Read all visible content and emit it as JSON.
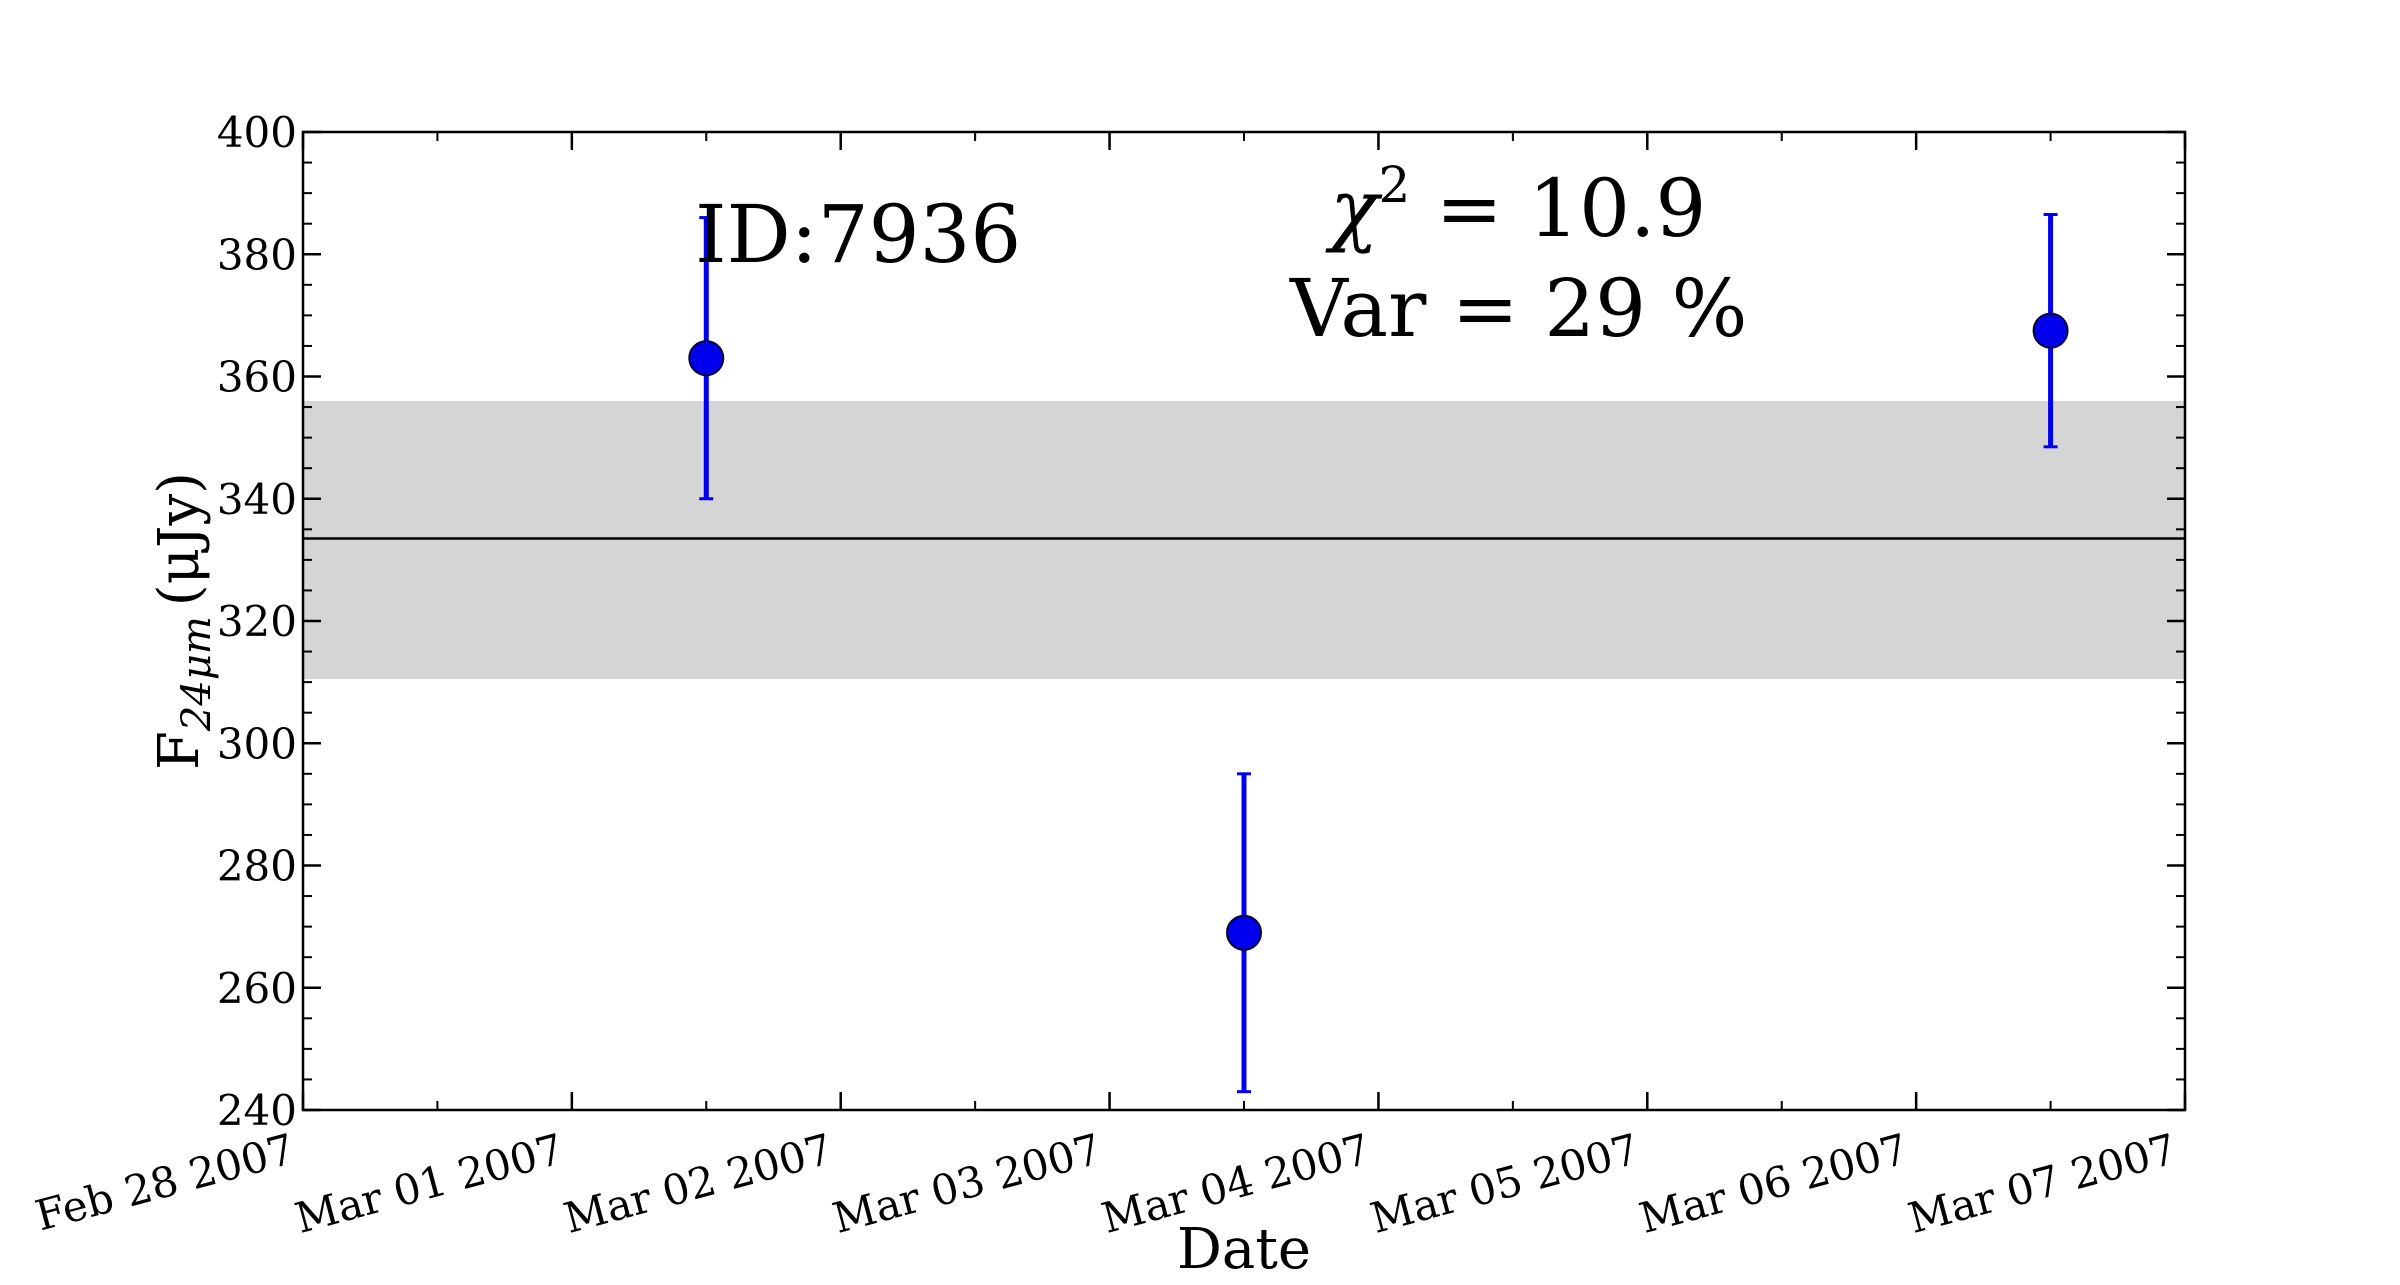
{
  "chart_data": {
    "type": "scatter",
    "title": "",
    "xlabel": "Date",
    "ylabel": {
      "main": "F",
      "subscript": "24μm",
      "unit": "(μJy)"
    },
    "x_is_date": true,
    "xlim": [
      "2007-02-28",
      "2007-03-07"
    ],
    "ylim": [
      240,
      400
    ],
    "x_ticks": [
      {
        "date": "2007-02-28",
        "label": "Feb 28 2007"
      },
      {
        "date": "2007-03-01",
        "label": "Mar 01 2007"
      },
      {
        "date": "2007-03-02",
        "label": "Mar 02 2007"
      },
      {
        "date": "2007-03-03",
        "label": "Mar 03 2007"
      },
      {
        "date": "2007-03-04",
        "label": "Mar 04 2007"
      },
      {
        "date": "2007-03-05",
        "label": "Mar 05 2007"
      },
      {
        "date": "2007-03-06",
        "label": "Mar 06 2007"
      },
      {
        "date": "2007-03-07",
        "label": "Mar 07 2007"
      }
    ],
    "y_ticks": [
      240,
      260,
      280,
      300,
      320,
      340,
      360,
      380,
      400
    ],
    "series": [
      {
        "color": "#0000ee",
        "points": [
          {
            "x": "2007-03-01 12:00",
            "y": 363,
            "err_low": 23,
            "err_high": 23
          },
          {
            "x": "2007-03-03 12:00",
            "y": 269,
            "err_low": 26,
            "err_high": 26
          },
          {
            "x": "2007-03-06 12:00",
            "y": 367.5,
            "err_low": 19,
            "err_high": 19
          }
        ]
      }
    ],
    "mean_line": {
      "y": 333.5,
      "color": "#000000"
    },
    "band": {
      "y_low": 310.5,
      "y_high": 356,
      "color": "#d5d5d5"
    },
    "annotations": {
      "id_text": "ID:7936",
      "chi2_symbol": "χ",
      "chi2_power": "2",
      "chi2_value": " = 10.9",
      "var_text": "Var = 29 %"
    },
    "grid": false,
    "legend": "none"
  }
}
